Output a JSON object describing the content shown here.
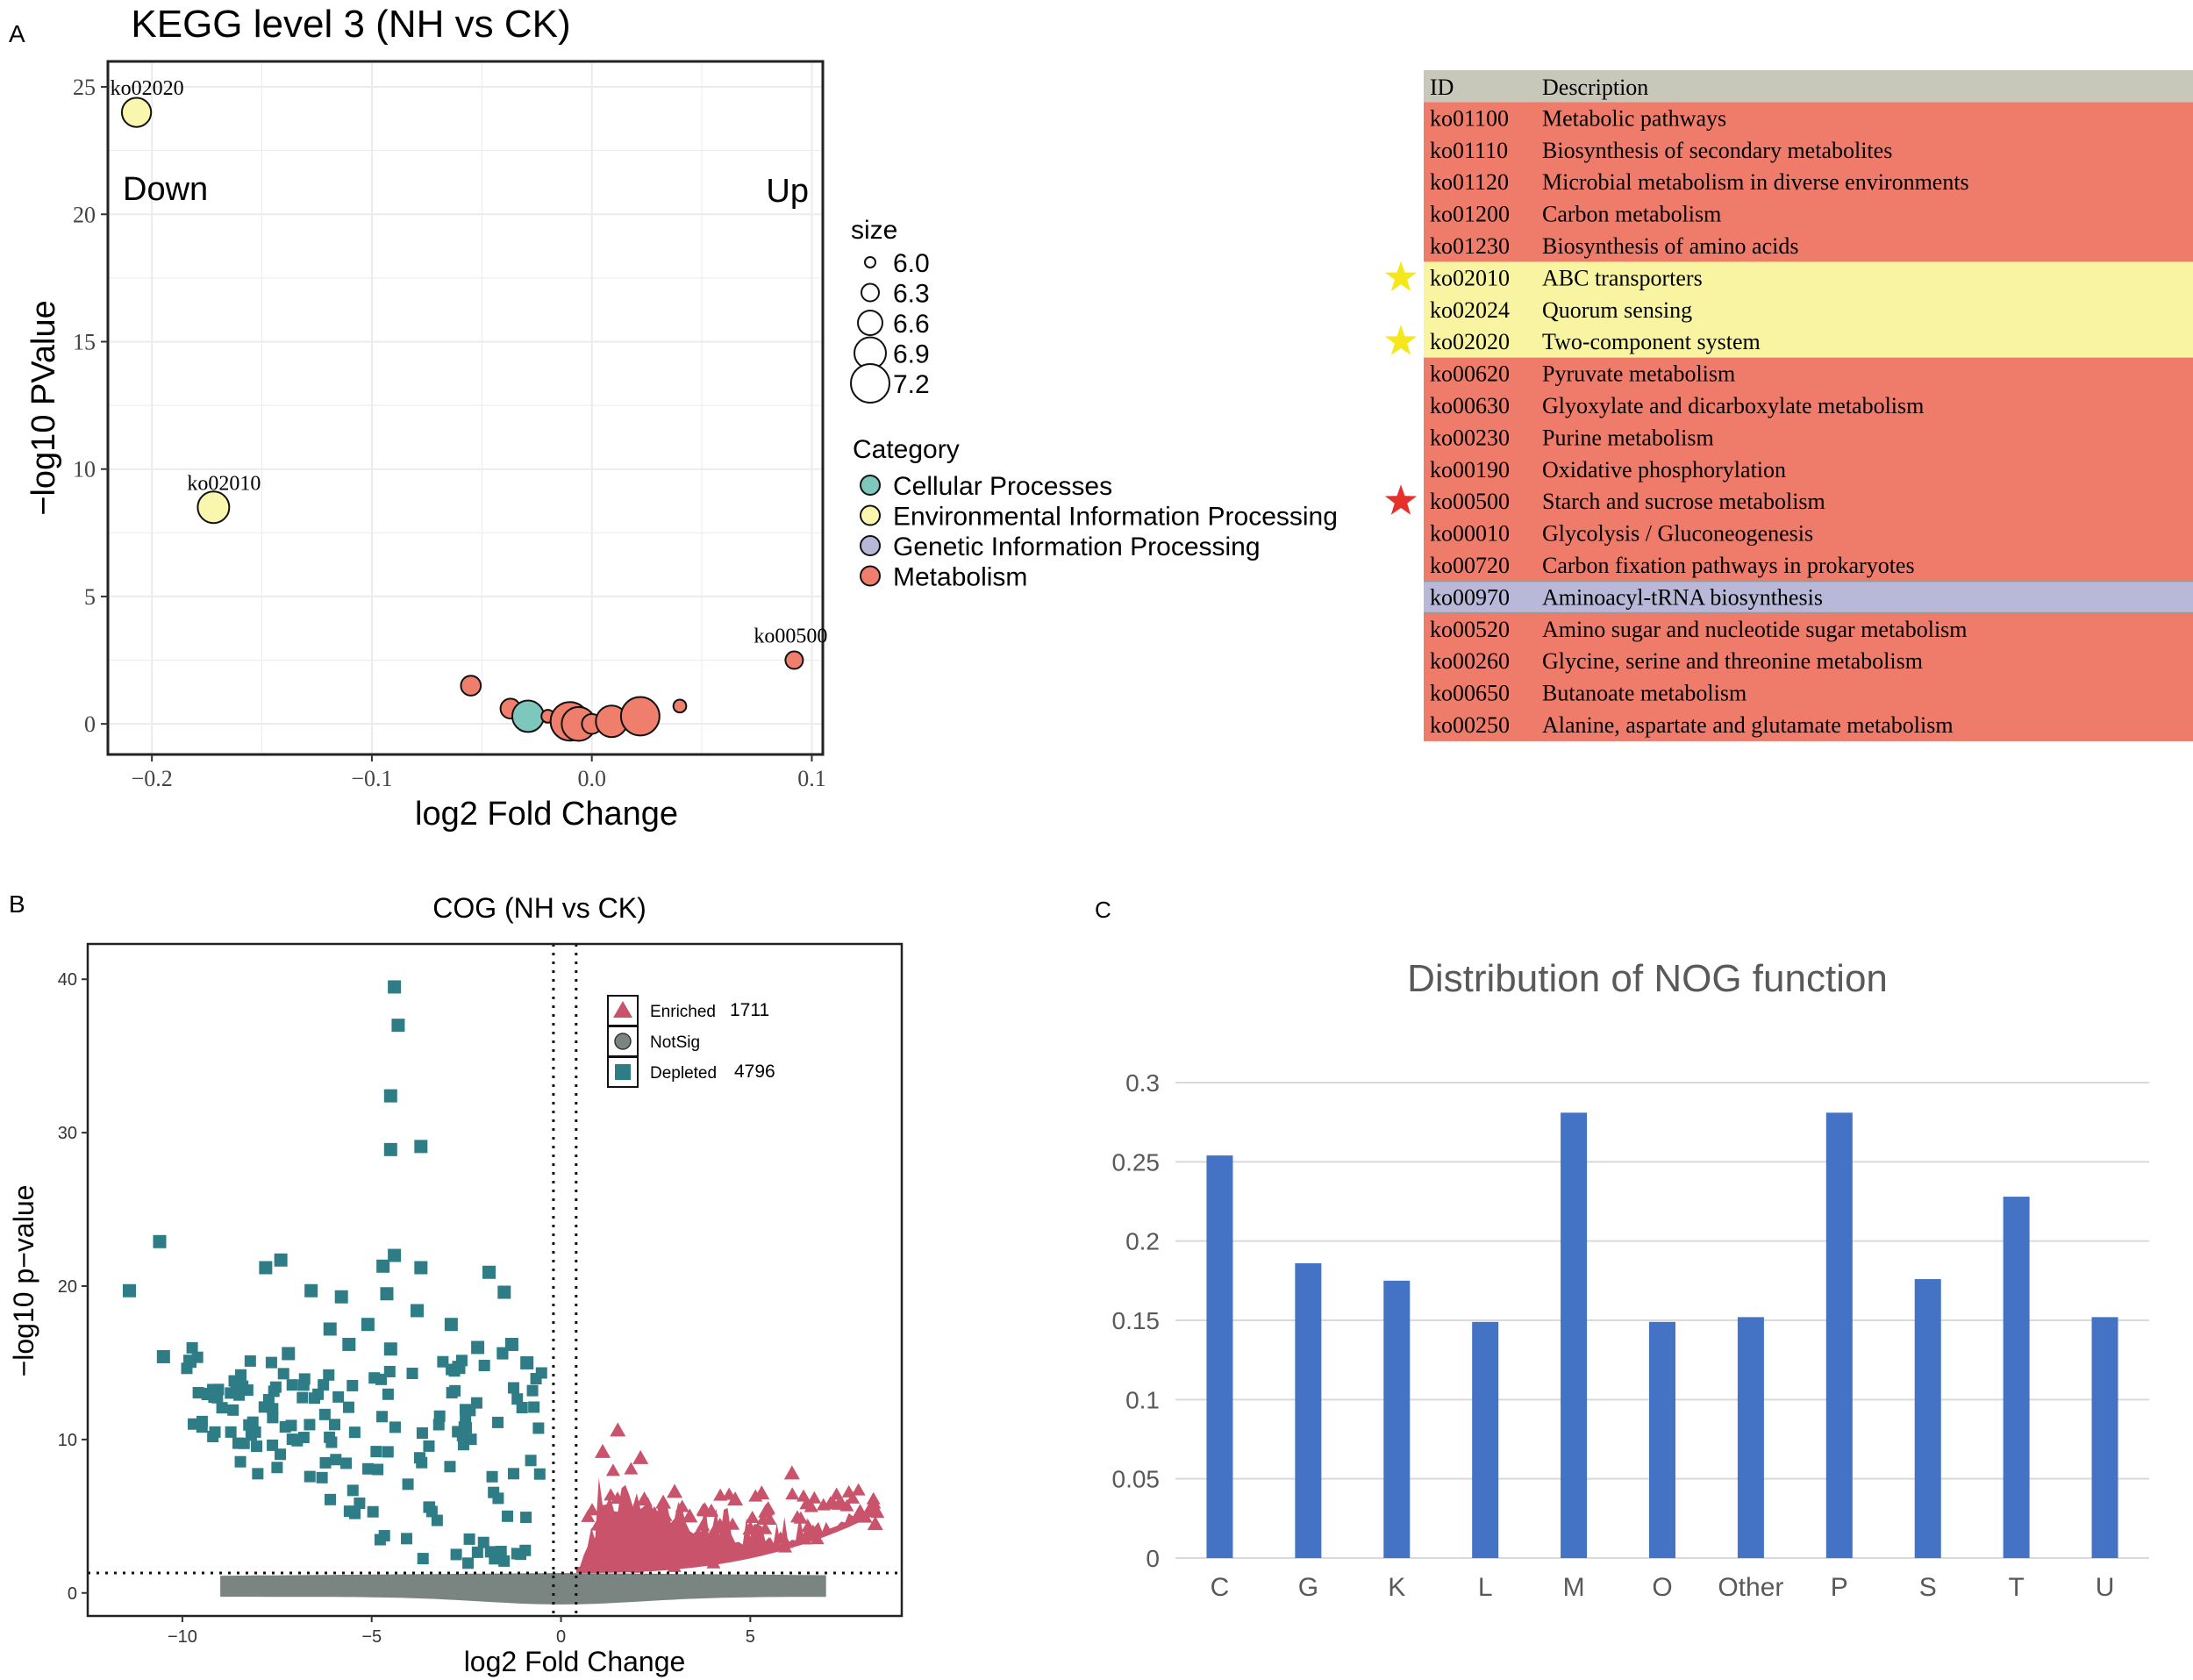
{
  "panel_labels": {
    "a": "A",
    "b": "B",
    "c": "C"
  },
  "chart_data": [
    {
      "type": "scatter",
      "title": "KEGG level 3 (NH vs CK)",
      "xlabel": "log2 Fold Change",
      "ylabel": "−log10 PValue",
      "xlim": [
        -0.22,
        0.105
      ],
      "ylim": [
        -1.2,
        26
      ],
      "xticks": [
        -0.2,
        -0.1,
        0.0,
        0.1
      ],
      "xtick_labels": [
        "−0.2",
        "−0.1",
        "0.0",
        "0.1"
      ],
      "yticks": [
        0,
        5,
        10,
        15,
        20,
        25
      ],
      "ytick_labels": [
        "0",
        "5",
        "10",
        "15",
        "20",
        "25"
      ],
      "annotations": {
        "down": "Down",
        "up": "Up"
      },
      "categories": [
        {
          "name": "Cellular Processes",
          "color": "#7dc7bd"
        },
        {
          "name": "Environmental Information Processing",
          "color": "#f9f6ad"
        },
        {
          "name": "Genetic Information Processing",
          "color": "#b8b7d8"
        },
        {
          "name": "Metabolism",
          "color": "#ef7f6c"
        }
      ],
      "size_legend": {
        "title": "size",
        "values": [
          6.0,
          6.3,
          6.6,
          6.9,
          7.2
        ],
        "labels": [
          "6.0",
          "6.3",
          "6.6",
          "6.9",
          "7.2"
        ]
      },
      "category_legend_title": "Category",
      "points": [
        {
          "x": -0.207,
          "y": 24.0,
          "size": 6.8,
          "cat": 1,
          "label": "ko02020"
        },
        {
          "x": -0.172,
          "y": 8.5,
          "size": 6.9,
          "cat": 1,
          "label": "ko02010"
        },
        {
          "x": 0.092,
          "y": 2.5,
          "size": 6.3,
          "cat": 3,
          "label": "ko00500"
        },
        {
          "x": -0.055,
          "y": 1.5,
          "size": 6.4,
          "cat": 3,
          "label": ""
        },
        {
          "x": -0.037,
          "y": 0.6,
          "size": 6.4,
          "cat": 3,
          "label": ""
        },
        {
          "x": -0.029,
          "y": 0.3,
          "size": 6.9,
          "cat": 0,
          "label": ""
        },
        {
          "x": -0.02,
          "y": 0.3,
          "size": 6.1,
          "cat": 3,
          "label": ""
        },
        {
          "x": -0.014,
          "y": 0.2,
          "size": 6.2,
          "cat": 3,
          "label": ""
        },
        {
          "x": -0.01,
          "y": 0.1,
          "size": 7.2,
          "cat": 3,
          "label": ""
        },
        {
          "x": -0.006,
          "y": 0.0,
          "size": 7.0,
          "cat": 3,
          "label": ""
        },
        {
          "x": 0.0,
          "y": 0.0,
          "size": 6.4,
          "cat": 3,
          "label": ""
        },
        {
          "x": 0.005,
          "y": 0.2,
          "size": 6.1,
          "cat": 3,
          "label": ""
        },
        {
          "x": 0.009,
          "y": 0.1,
          "size": 6.9,
          "cat": 3,
          "label": ""
        },
        {
          "x": 0.022,
          "y": 0.3,
          "size": 7.2,
          "cat": 3,
          "label": ""
        },
        {
          "x": 0.04,
          "y": 0.7,
          "size": 6.1,
          "cat": 3,
          "label": ""
        }
      ]
    },
    {
      "type": "table",
      "columns": [
        "ID",
        "Description"
      ],
      "header_color": "#c8c8ba",
      "rows": [
        {
          "id": "ko01100",
          "desc": "Metabolic pathways",
          "color": "#ef7c6b",
          "star": ""
        },
        {
          "id": "ko01110",
          "desc": "Biosynthesis of secondary metabolites",
          "color": "#ef7c6b",
          "star": ""
        },
        {
          "id": "ko01120",
          "desc": "Microbial metabolism in diverse environments",
          "color": "#ef7c6b",
          "star": ""
        },
        {
          "id": "ko01200",
          "desc": "Carbon metabolism",
          "color": "#ef7c6b",
          "star": ""
        },
        {
          "id": "ko01230",
          "desc": "Biosynthesis of amino acids",
          "color": "#ef7c6b",
          "star": ""
        },
        {
          "id": "ko02010",
          "desc": "ABC transporters",
          "color": "#f8f4a2",
          "star": "#f4e81c"
        },
        {
          "id": "ko02024",
          "desc": "Quorum sensing",
          "color": "#f8f4a2",
          "star": ""
        },
        {
          "id": "ko02020",
          "desc": "Two-component system",
          "color": "#f8f4a2",
          "star": "#f4e81c"
        },
        {
          "id": "ko00620",
          "desc": "Pyruvate metabolism",
          "color": "#ef7c6b",
          "star": ""
        },
        {
          "id": "ko00630",
          "desc": "Glyoxylate and dicarboxylate metabolism",
          "color": "#ef7c6b",
          "star": ""
        },
        {
          "id": "ko00230",
          "desc": "Purine metabolism",
          "color": "#ef7c6b",
          "star": ""
        },
        {
          "id": "ko00190",
          "desc": "Oxidative phosphorylation",
          "color": "#ef7c6b",
          "star": ""
        },
        {
          "id": "ko00500",
          "desc": "Starch and sucrose metabolism",
          "color": "#ef7c6b",
          "star": "#e8302a"
        },
        {
          "id": "ko00010",
          "desc": "Glycolysis / Gluconeogenesis",
          "color": "#ef7c6b",
          "star": ""
        },
        {
          "id": "ko00720",
          "desc": "Carbon fixation pathways in prokaryotes",
          "color": "#ef7c6b",
          "star": ""
        },
        {
          "id": "ko00970",
          "desc": "Aminoacyl-tRNA biosynthesis",
          "color": "#b9b8d8",
          "star": ""
        },
        {
          "id": "ko00520",
          "desc": "Amino sugar and nucleotide sugar metabolism",
          "color": "#ef7c6b",
          "star": ""
        },
        {
          "id": "ko00260",
          "desc": "Glycine, serine and threonine metabolism",
          "color": "#ef7c6b",
          "star": ""
        },
        {
          "id": "ko00650",
          "desc": "Butanoate metabolism",
          "color": "#ef7c6b",
          "star": ""
        },
        {
          "id": "ko00250",
          "desc": "Alanine, aspartate and glutamate metabolism",
          "color": "#ef7c6b",
          "star": ""
        }
      ]
    },
    {
      "type": "scatter",
      "title": "COG (NH vs CK)",
      "xlabel": "log2 Fold Change",
      "ylabel": "−log10 p−value",
      "xlim": [
        -12.5,
        9.0
      ],
      "ylim": [
        -1.5,
        42.3
      ],
      "xticks": [
        -10,
        -5,
        0,
        5
      ],
      "xtick_labels": [
        "−10",
        "−5",
        "0",
        "5"
      ],
      "yticks": [
        0,
        10,
        20,
        30,
        40
      ],
      "ytick_labels": [
        "0",
        "10",
        "20",
        "30",
        "40"
      ],
      "threshold_x": [
        -0.2,
        0.4
      ],
      "threshold_y": 1.3,
      "legend": [
        {
          "name": "Enriched",
          "count": "1711",
          "color": "#c9536a",
          "shape": "triangle"
        },
        {
          "name": "NotSig",
          "count": "",
          "color": "#7a8582",
          "shape": "circle"
        },
        {
          "name": "Depleted",
          "count": "4796",
          "color": "#2e7c86",
          "shape": "square"
        }
      ],
      "outliers_depleted": [
        [
          -4.4,
          39.5
        ],
        [
          -4.3,
          37.0
        ],
        [
          -4.5,
          32.4
        ],
        [
          -4.5,
          28.9
        ],
        [
          -3.7,
          29.1
        ],
        [
          -11.4,
          19.7
        ],
        [
          -10.6,
          22.9
        ],
        [
          -7.4,
          21.7
        ],
        [
          -7.8,
          21.2
        ],
        [
          -6.6,
          19.7
        ],
        [
          -4.7,
          21.3
        ],
        [
          -4.4,
          22.0
        ],
        [
          -3.7,
          21.2
        ],
        [
          -1.9,
          20.9
        ],
        [
          -1.5,
          19.6
        ],
        [
          -5.8,
          19.3
        ],
        [
          -4.6,
          19.5
        ],
        [
          -3.8,
          18.4
        ],
        [
          -6.1,
          17.2
        ],
        [
          -5.1,
          17.5
        ],
        [
          -2.9,
          17.5
        ],
        [
          -1.3,
          16.2
        ],
        [
          -0.9,
          15.0
        ],
        [
          -10.5,
          15.4
        ],
        [
          -9.8,
          15.1
        ],
        [
          -7.2,
          15.6
        ],
        [
          -5.6,
          16.2
        ],
        [
          -4.5,
          15.9
        ],
        [
          -2.2,
          16.0
        ],
        [
          -2.7,
          14.7
        ]
      ],
      "outliers_enriched": [
        [
          1.5,
          10.6
        ],
        [
          1.1,
          9.2
        ],
        [
          2.1,
          8.8
        ],
        [
          6.1,
          7.8
        ],
        [
          5.3,
          6.5
        ],
        [
          4.6,
          6.1
        ],
        [
          3.0,
          6.6
        ],
        [
          2.7,
          5.9
        ],
        [
          3.8,
          5.4
        ],
        [
          7.9,
          5.3
        ],
        [
          8.3,
          4.5
        ],
        [
          5.0,
          4.2
        ],
        [
          4.2,
          4.4
        ],
        [
          2.2,
          6.1
        ],
        [
          3.4,
          5.0
        ]
      ]
    },
    {
      "type": "bar",
      "title": "Distribution of NOG function",
      "categories": [
        "C",
        "G",
        "K",
        "L",
        "M",
        "O",
        "Other",
        "P",
        "S",
        "T",
        "U"
      ],
      "values": [
        0.254,
        0.186,
        0.175,
        0.149,
        0.281,
        0.149,
        0.152,
        0.281,
        0.176,
        0.228,
        0.152
      ],
      "ylim": [
        0,
        0.3
      ],
      "yticks": [
        0,
        0.05,
        0.1,
        0.15,
        0.2,
        0.25,
        0.3
      ],
      "ytick_labels": [
        "0",
        "0.05",
        "0.1",
        "0.15",
        "0.2",
        "0.25",
        "0.3"
      ],
      "color": "#4472c4",
      "xlabel": "",
      "ylabel": ""
    }
  ]
}
